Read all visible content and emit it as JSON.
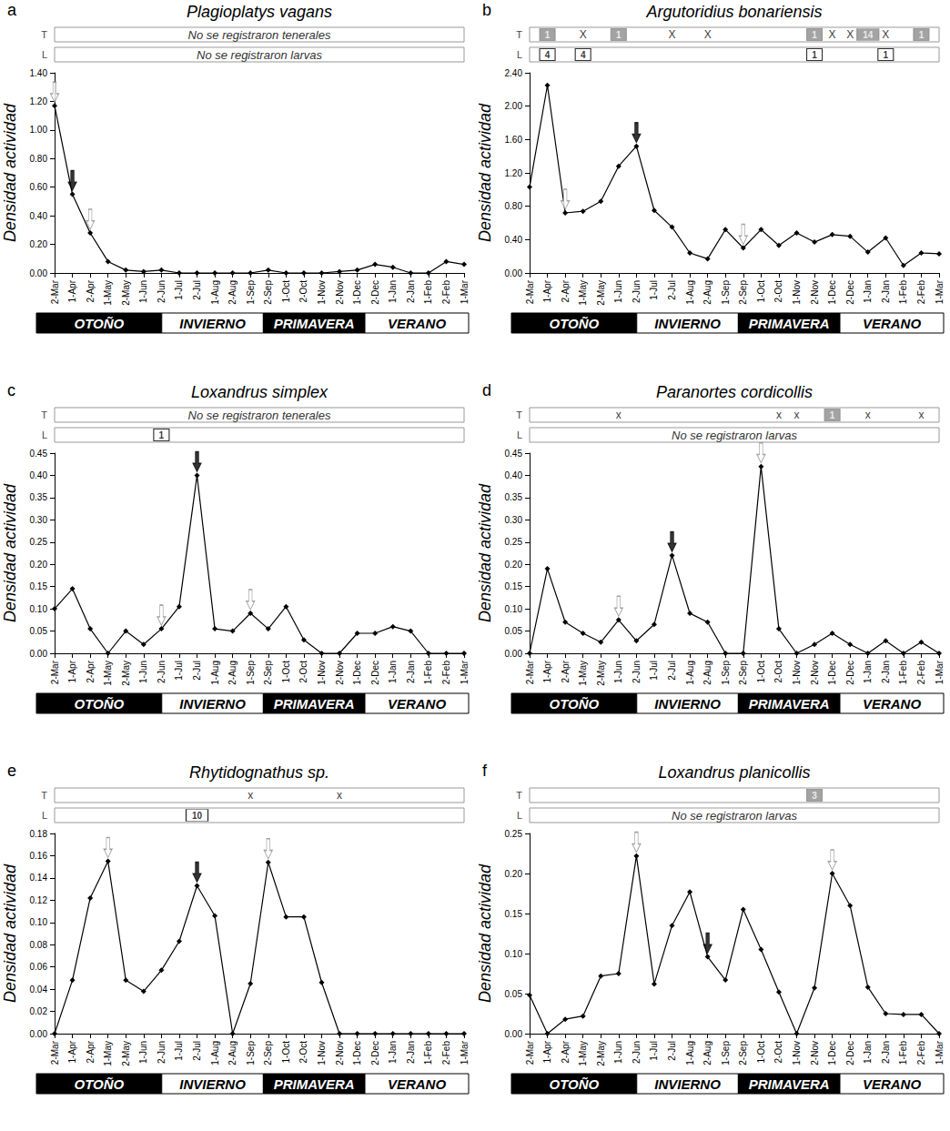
{
  "chart_data": [
    {
      "type": "line",
      "panel": "a",
      "title": "Plagioplatys vagans",
      "y_label": "Densidad actividad",
      "categories": [
        "2-Mar",
        "1-Apr",
        "2-Apr",
        "1-May",
        "2-May",
        "1-Jun",
        "2-Jun",
        "1-Jul",
        "2-Jul",
        "1-Aug",
        "2-Aug",
        "1-Sep",
        "2-Sep",
        "1-Oct",
        "2-Oct",
        "1-Nov",
        "2-Nov",
        "1-Dec",
        "2-Dec",
        "1-Jan",
        "2-Jan",
        "1-Feb",
        "2-Feb",
        "1-Mar"
      ],
      "values": [
        1.17,
        0.55,
        0.28,
        0.08,
        0.02,
        0.01,
        0.02,
        0.0,
        0.0,
        0.0,
        0.0,
        0.0,
        0.02,
        0.0,
        0.0,
        0.0,
        0.01,
        0.02,
        0.06,
        0.04,
        0.0,
        0.0,
        0.08,
        0.06
      ],
      "color": "#000000",
      "marker": "diamond",
      "grid": false,
      "ylim": [
        0,
        1.4
      ],
      "yticks": [
        {
          "value": 0,
          "label": "0.00"
        },
        {
          "value": 0.2,
          "label": "0.20"
        },
        {
          "value": 0.4,
          "label": "0.40"
        },
        {
          "value": 0.6,
          "label": "0.60"
        },
        {
          "value": 0.8,
          "label": "0.80"
        },
        {
          "value": 1.0,
          "label": "1.00"
        },
        {
          "value": 1.2,
          "label": "1.20"
        },
        {
          "value": 1.4,
          "label": "1.40"
        }
      ],
      "arrows": [
        {
          "x": "2-Mar",
          "color": "#ffffff"
        },
        {
          "x": "1-Apr",
          "color": "#000000"
        },
        {
          "x": "2-Apr",
          "color": "#ffffff"
        }
      ],
      "rows": [
        {
          "label": "T",
          "text": "No se registraron tenerales"
        },
        {
          "label": "L",
          "text": "No se registraron larvas"
        }
      ],
      "seasons": [
        {
          "label": "OTOÑO",
          "color": "#000000"
        },
        {
          "label": "INVIERNO",
          "color": "#ffffff"
        },
        {
          "label": "PRIMAVERA",
          "color": "#000000"
        },
        {
          "label": "VERANO",
          "color": "#ffffff"
        }
      ]
    },
    {
      "type": "line",
      "panel": "b",
      "title": "Argutoridius bonariensis",
      "y_label": "Densidad actividad",
      "categories": [
        "2-Mar",
        "1-Apr",
        "2-Apr",
        "1-May",
        "2-May",
        "1-Jun",
        "2-Jun",
        "1-Jul",
        "2-Jul",
        "1-Aug",
        "2-Aug",
        "1-Sep",
        "2-Sep",
        "1-Oct",
        "2-Oct",
        "1-Nov",
        "2-Nov",
        "1-Dec",
        "2-Dec",
        "1-Jan",
        "2-Jan",
        "1-Feb",
        "2-Feb",
        "1-Mar"
      ],
      "values": [
        1.03,
        2.25,
        0.72,
        0.74,
        0.86,
        1.28,
        1.52,
        0.75,
        0.55,
        0.24,
        0.17,
        0.52,
        0.3,
        0.52,
        0.33,
        0.48,
        0.37,
        0.46,
        0.44,
        0.25,
        0.42,
        0.09,
        0.24,
        0.23
      ],
      "color": "#000000",
      "marker": "diamond",
      "grid": false,
      "ylim": [
        0,
        2.4
      ],
      "yticks": [
        {
          "value": 0,
          "label": "0.00"
        },
        {
          "value": 0.4,
          "label": "0.40"
        },
        {
          "value": 0.8,
          "label": "0.80"
        },
        {
          "value": 1.2,
          "label": "1.20"
        },
        {
          "value": 1.6,
          "label": "1.60"
        },
        {
          "value": 2.0,
          "label": "2.00"
        },
        {
          "value": 2.4,
          "label": "2.40"
        }
      ],
      "arrows": [
        {
          "x": "2-Apr",
          "color": "#ffffff"
        },
        {
          "x": "2-Jun",
          "color": "#000000"
        },
        {
          "x": "2-Sep",
          "color": "#ffffff"
        }
      ],
      "rows": [
        {
          "label": "T",
          "color": "#8c8c8c",
          "counts": [
            {
              "x": "1-Apr",
              "value": 1
            },
            {
              "x": "1-Jun",
              "value": 1
            },
            {
              "x": "2-Nov",
              "value": 1
            },
            {
              "x": "1-Jan",
              "value": 14
            },
            {
              "x": "2-Feb",
              "value": 1
            }
          ],
          "mark_text": "X",
          "marks": [
            "1-May",
            "2-Jul",
            "2-Aug",
            "1-Dec",
            "2-Dec",
            "2-Jan"
          ]
        },
        {
          "label": "L",
          "color": "#ffffff",
          "counts": [
            {
              "x": "1-Apr",
              "value": 4
            },
            {
              "x": "1-May",
              "value": 4
            },
            {
              "x": "2-Nov",
              "value": 1
            },
            {
              "x": "2-Jan",
              "value": 1
            }
          ]
        }
      ],
      "seasons": [
        {
          "label": "OTOÑO",
          "color": "#000000"
        },
        {
          "label": "INVIERNO",
          "color": "#ffffff"
        },
        {
          "label": "PRIMAVERA",
          "color": "#000000"
        },
        {
          "label": "VERANO",
          "color": "#ffffff"
        }
      ]
    },
    {
      "type": "line",
      "panel": "c",
      "title": "Loxandrus simplex",
      "y_label": "Densidad actividad",
      "categories": [
        "2-Mar",
        "1-Apr",
        "2-Apr",
        "1-May",
        "2-May",
        "1-Jun",
        "2-Jun",
        "1-Jul",
        "2-Jul",
        "1-Aug",
        "2-Aug",
        "1-Sep",
        "2-Sep",
        "1-Oct",
        "2-Oct",
        "1-Nov",
        "2-Nov",
        "1-Dec",
        "2-Dec",
        "1-Jan",
        "2-Jan",
        "1-Feb",
        "2-Feb",
        "1-Mar"
      ],
      "values": [
        0.1,
        0.145,
        0.055,
        0.0,
        0.05,
        0.02,
        0.055,
        0.105,
        0.4,
        0.055,
        0.05,
        0.09,
        0.055,
        0.105,
        0.03,
        0.0,
        0.0,
        0.045,
        0.045,
        0.06,
        0.05,
        0.0,
        0.0,
        0.0
      ],
      "color": "#000000",
      "marker": "diamond",
      "grid": false,
      "ylim": [
        0,
        0.45
      ],
      "yticks": [
        {
          "value": 0,
          "label": "0.00"
        },
        {
          "value": 0.05,
          "label": "0.05"
        },
        {
          "value": 0.1,
          "label": "0.10"
        },
        {
          "value": 0.15,
          "label": "0.15"
        },
        {
          "value": 0.2,
          "label": "0.20"
        },
        {
          "value": 0.25,
          "label": "0.25"
        },
        {
          "value": 0.3,
          "label": "0.30"
        },
        {
          "value": 0.35,
          "label": "0.35"
        },
        {
          "value": 0.4,
          "label": "0.40"
        },
        {
          "value": 0.45,
          "label": "0.45"
        }
      ],
      "arrows": [
        {
          "x": "2-Jun",
          "color": "#ffffff"
        },
        {
          "x": "2-Jul",
          "color": "#000000"
        },
        {
          "x": "1-Sep",
          "color": "#ffffff"
        }
      ],
      "rows": [
        {
          "label": "T",
          "text": "No se registraron tenerales"
        },
        {
          "label": "L",
          "color": "#ffffff",
          "counts": [
            {
              "x": "2-Jun",
              "value": 1
            }
          ]
        }
      ],
      "seasons": [
        {
          "label": "OTOÑO",
          "color": "#000000"
        },
        {
          "label": "INVIERNO",
          "color": "#ffffff"
        },
        {
          "label": "PRIMAVERA",
          "color": "#000000"
        },
        {
          "label": "VERANO",
          "color": "#ffffff"
        }
      ]
    },
    {
      "type": "line",
      "panel": "d",
      "title": "Paranortes cordicollis",
      "y_label": "Densidad actividad",
      "categories": [
        "2-Mar",
        "1-Apr",
        "2-Apr",
        "1-May",
        "2-May",
        "1-Jun",
        "2-Jun",
        "1-Jul",
        "2-Jul",
        "1-Aug",
        "2-Aug",
        "1-Sep",
        "2-Sep",
        "1-Oct",
        "2-Oct",
        "1-Nov",
        "2-Nov",
        "1-Dec",
        "2-Dec",
        "1-Jan",
        "2-Jan",
        "1-Feb",
        "2-Feb",
        "1-Mar"
      ],
      "values": [
        0.0,
        0.19,
        0.07,
        0.045,
        0.025,
        0.075,
        0.028,
        0.065,
        0.22,
        0.09,
        0.07,
        0.0,
        0.0,
        0.42,
        0.055,
        0.0,
        0.02,
        0.045,
        0.02,
        0.0,
        0.028,
        0.0,
        0.025,
        0.0
      ],
      "color": "#000000",
      "marker": "diamond",
      "grid": false,
      "ylim": [
        0,
        0.45
      ],
      "yticks": [
        {
          "value": 0,
          "label": "0.00"
        },
        {
          "value": 0.05,
          "label": "0.05"
        },
        {
          "value": 0.1,
          "label": "0.10"
        },
        {
          "value": 0.15,
          "label": "0.15"
        },
        {
          "value": 0.2,
          "label": "0.20"
        },
        {
          "value": 0.25,
          "label": "0.25"
        },
        {
          "value": 0.3,
          "label": "0.30"
        },
        {
          "value": 0.35,
          "label": "0.35"
        },
        {
          "value": 0.4,
          "label": "0.40"
        },
        {
          "value": 0.45,
          "label": "0.45"
        }
      ],
      "arrows": [
        {
          "x": "1-Jun",
          "color": "#ffffff"
        },
        {
          "x": "2-Jul",
          "color": "#000000"
        },
        {
          "x": "1-Oct",
          "color": "#ffffff"
        }
      ],
      "rows": [
        {
          "label": "T",
          "color": "#8c8c8c",
          "counts": [
            {
              "x": "1-Dec",
              "value": 1
            }
          ],
          "mark_text": "x",
          "marks": [
            "1-Jun",
            "2-Oct",
            "1-Nov",
            "1-Jan",
            "2-Feb"
          ]
        },
        {
          "label": "L",
          "text": "No se registraron larvas"
        }
      ],
      "seasons": [
        {
          "label": "OTOÑO",
          "color": "#000000"
        },
        {
          "label": "INVIERNO",
          "color": "#ffffff"
        },
        {
          "label": "PRIMAVERA",
          "color": "#000000"
        },
        {
          "label": "VERANO",
          "color": "#ffffff"
        }
      ]
    },
    {
      "type": "line",
      "panel": "e",
      "title": "Rhytidognathus sp.",
      "y_label": "Densidad actividad",
      "categories": [
        "2-Mar",
        "1-Apr",
        "2-Apr",
        "1-May",
        "2-May",
        "1-Jun",
        "2-Jun",
        "1-Jul",
        "2-Jul",
        "1-Aug",
        "2-Aug",
        "1-Sep",
        "2-Sep",
        "1-Oct",
        "2-Oct",
        "1-Nov",
        "2-Nov",
        "1-Dec",
        "2-Dec",
        "1-Jan",
        "2-Jan",
        "1-Feb",
        "2-Feb",
        "1-Mar"
      ],
      "values": [
        0.0,
        0.048,
        0.122,
        0.155,
        0.048,
        0.038,
        0.057,
        0.083,
        0.133,
        0.106,
        0.0,
        0.045,
        0.154,
        0.105,
        0.105,
        0.046,
        0.0,
        0.0,
        0.0,
        0.0,
        0.0,
        0.0,
        0.0,
        0.0
      ],
      "color": "#000000",
      "marker": "diamond",
      "grid": false,
      "ylim": [
        0,
        0.18
      ],
      "yticks": [
        {
          "value": 0,
          "label": "0.00"
        },
        {
          "value": 0.02,
          "label": "0.02"
        },
        {
          "value": 0.04,
          "label": "0.04"
        },
        {
          "value": 0.06,
          "label": "0.06"
        },
        {
          "value": 0.08,
          "label": "0.08"
        },
        {
          "value": 0.1,
          "label": "0.10"
        },
        {
          "value": 0.12,
          "label": "0.12"
        },
        {
          "value": 0.14,
          "label": "0.14"
        },
        {
          "value": 0.16,
          "label": "0.16"
        },
        {
          "value": 0.18,
          "label": "0.18"
        }
      ],
      "arrows": [
        {
          "x": "1-May",
          "color": "#ffffff"
        },
        {
          "x": "2-Jul",
          "color": "#000000"
        },
        {
          "x": "2-Sep",
          "color": "#ffffff"
        }
      ],
      "rows": [
        {
          "label": "T",
          "mark_text": "x",
          "marks": [
            "1-Sep",
            "2-Nov"
          ]
        },
        {
          "label": "L",
          "color": "#ffffff",
          "counts": [
            {
              "x": "2-Jul",
              "value": 10
            }
          ]
        }
      ],
      "seasons": [
        {
          "label": "OTOÑO",
          "color": "#000000"
        },
        {
          "label": "INVIERNO",
          "color": "#ffffff"
        },
        {
          "label": "PRIMAVERA",
          "color": "#000000"
        },
        {
          "label": "VERANO",
          "color": "#ffffff"
        }
      ]
    },
    {
      "type": "line",
      "panel": "f",
      "title": "Loxandrus planicollis",
      "y_label": "Densidad actividad",
      "categories": [
        "2-Mar",
        "1-Apr",
        "2-Apr",
        "1-May",
        "2-May",
        "1-Jun",
        "2-Jun",
        "1-Jul",
        "2-Jul",
        "1-Aug",
        "2-Aug",
        "1-Sep",
        "2-Sep",
        "1-Oct",
        "2-Oct",
        "1-Nov",
        "2-Nov",
        "1-Dec",
        "2-Dec",
        "1-Jan",
        "2-Jan",
        "1-Feb",
        "2-Feb",
        "1-Mar"
      ],
      "values": [
        0.048,
        0.0,
        0.018,
        0.022,
        0.072,
        0.075,
        0.222,
        0.062,
        0.135,
        0.177,
        0.096,
        0.067,
        0.155,
        0.105,
        0.052,
        0.0,
        0.057,
        0.2,
        0.16,
        0.058,
        0.025,
        0.024,
        0.024,
        0.0
      ],
      "color": "#000000",
      "marker": "diamond",
      "grid": false,
      "ylim": [
        0,
        0.25
      ],
      "yticks": [
        {
          "value": 0,
          "label": "0.00"
        },
        {
          "value": 0.05,
          "label": "0.05"
        },
        {
          "value": 0.1,
          "label": "0.10"
        },
        {
          "value": 0.15,
          "label": "0.15"
        },
        {
          "value": 0.2,
          "label": "0.20"
        },
        {
          "value": 0.25,
          "label": "0.25"
        }
      ],
      "arrows": [
        {
          "x": "2-Jun",
          "color": "#ffffff"
        },
        {
          "x": "2-Aug",
          "color": "#000000"
        },
        {
          "x": "1-Dec",
          "color": "#ffffff"
        }
      ],
      "rows": [
        {
          "label": "T",
          "color": "#8c8c8c",
          "counts": [
            {
              "x": "2-Nov",
              "value": 3
            }
          ]
        },
        {
          "label": "L",
          "text": "No se registraron larvas"
        }
      ],
      "seasons": [
        {
          "label": "OTOÑO",
          "color": "#000000"
        },
        {
          "label": "INVIERNO",
          "color": "#ffffff"
        },
        {
          "label": "PRIMAVERA",
          "color": "#000000"
        },
        {
          "label": "VERANO",
          "color": "#ffffff"
        }
      ]
    }
  ]
}
